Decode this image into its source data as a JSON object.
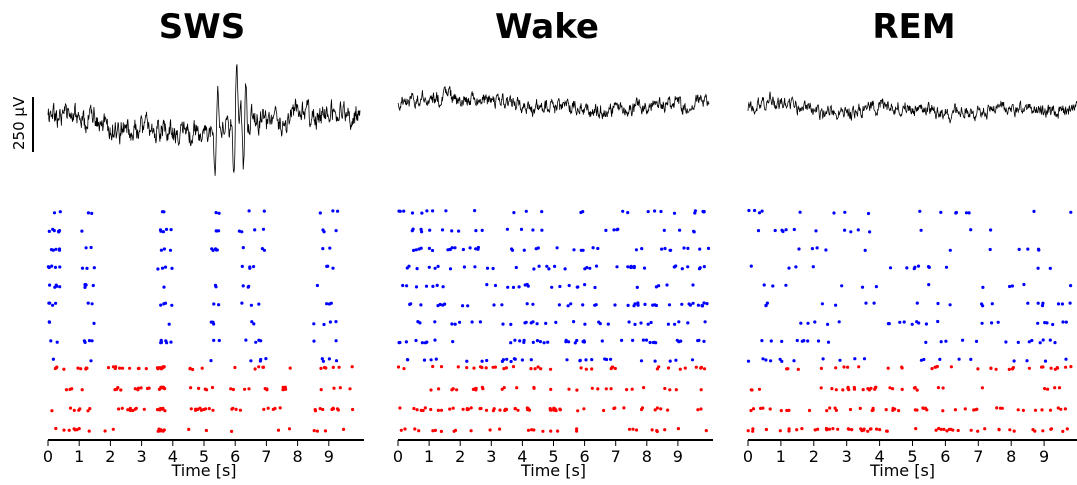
{
  "figure": {
    "scale_bar_label": "250 µV",
    "x_tick_labels": [
      "0",
      "1",
      "2",
      "3",
      "4",
      "5",
      "6",
      "7",
      "8",
      "9"
    ],
    "xlabel": "Time [s]"
  },
  "chart_data": [
    {
      "type": "scatter",
      "title": "SWS",
      "xlabel": "Time [s]",
      "xlim": [
        0,
        10
      ],
      "x_ticks": [
        0,
        1,
        2,
        3,
        4,
        5,
        6,
        7,
        8,
        9
      ],
      "trace": {
        "description_units": "µV",
        "scale_bar_uV": 250,
        "seed": 11,
        "slow_wave_bursts_s": [
          5.4,
          6.0,
          6.3
        ]
      },
      "raster": {
        "series": [
          {
            "color": "#0000ff",
            "n_units": 9,
            "rate_hz": 1.6,
            "pattern": "sparse",
            "active_windows_s": [
              [
                0,
                0.4
              ],
              [
                1,
                1.5
              ],
              [
                3.5,
                4.0
              ],
              [
                5.2,
                5.5
              ],
              [
                6.0,
                7.0
              ],
              [
                8.5,
                9.3
              ]
            ]
          },
          {
            "color": "#ff0000",
            "n_units": 4,
            "rate_hz": 4.0,
            "pattern": "up-state bursts",
            "active_windows_s": [
              [
                0,
                1.4
              ],
              [
                1.8,
                3.3
              ],
              [
                3.5,
                3.8
              ],
              [
                4.5,
                5.3
              ],
              [
                5.7,
                7.8
              ],
              [
                8.5,
                9.8
              ]
            ]
          }
        ]
      }
    },
    {
      "type": "scatter",
      "title": "Wake",
      "xlabel": "Time [s]",
      "xlim": [
        0,
        10
      ],
      "x_ticks": [
        0,
        1,
        2,
        3,
        4,
        5,
        6,
        7,
        8,
        9
      ],
      "trace": {
        "description_units": "µV",
        "scale_bar_uV": 250,
        "seed": 23,
        "slow_wave_bursts_s": []
      },
      "raster": {
        "series": [
          {
            "color": "#0000ff",
            "n_units": 9,
            "rate_hz": 3.0,
            "pattern": "tonic"
          },
          {
            "color": "#ff0000",
            "n_units": 4,
            "rate_hz": 4.5,
            "pattern": "tonic"
          }
        ]
      }
    },
    {
      "type": "scatter",
      "title": "REM",
      "xlabel": "Time [s]",
      "xlim": [
        0,
        10
      ],
      "x_ticks": [
        0,
        1,
        2,
        3,
        4,
        5,
        6,
        7,
        8,
        9
      ],
      "trace": {
        "description_units": "µV",
        "scale_bar_uV": 250,
        "seed": 37,
        "slow_wave_bursts_s": []
      },
      "raster": {
        "series": [
          {
            "color": "#0000ff",
            "n_units": 9,
            "rate_hz": 1.8,
            "pattern": "sparse"
          },
          {
            "color": "#ff0000",
            "n_units": 4,
            "rate_hz": 4.5,
            "pattern": "tonic, dense bottom"
          }
        ]
      }
    }
  ]
}
